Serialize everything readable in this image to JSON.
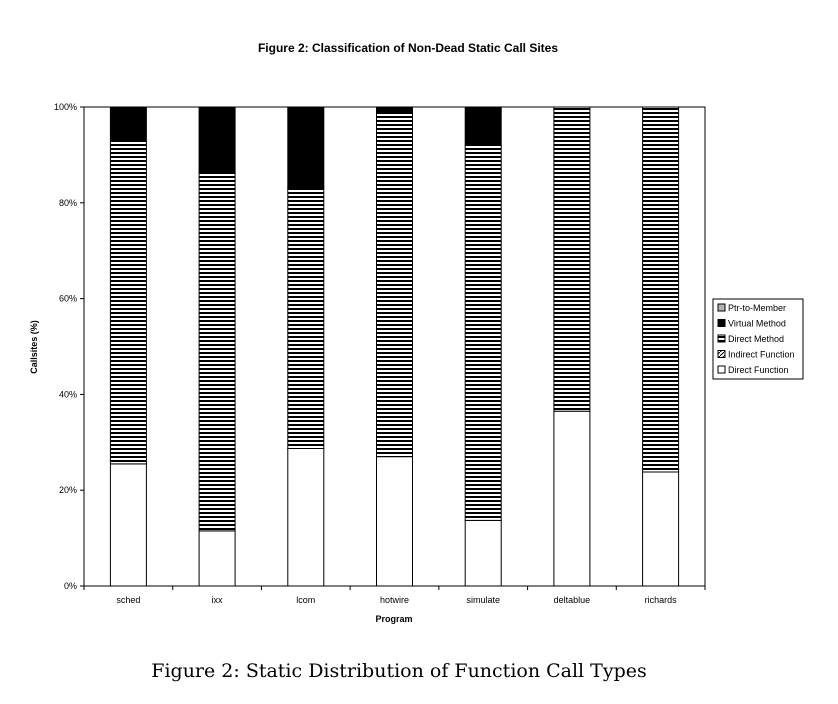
{
  "chart_data": {
    "type": "bar",
    "stacked": true,
    "title": "Figure 2: Classification of Non-Dead Static Call Sites",
    "xlabel": "Program",
    "ylabel": "Callsites (%)",
    "ylim": [
      0,
      100
    ],
    "yticks": [
      "0%",
      "20%",
      "40%",
      "60%",
      "80%",
      "100%"
    ],
    "categories": [
      "sched",
      "ixx",
      "lcom",
      "hotwire",
      "simulate",
      "deltablue",
      "richards"
    ],
    "series": [
      {
        "name": "Direct Function",
        "color": "#ffffff",
        "pattern": "none",
        "values": [
          25.5,
          11.5,
          28.7,
          27.0,
          13.7,
          36.5,
          23.8
        ]
      },
      {
        "name": "Indirect Function",
        "color": "#ffffff",
        "pattern": "diagonal",
        "values": [
          0,
          0,
          0,
          0,
          0,
          0,
          0
        ]
      },
      {
        "name": "Direct Method",
        "color": "#000000",
        "pattern": "horizontal",
        "values": [
          67.3,
          74.8,
          54.3,
          71.8,
          78.3,
          63.5,
          76.2
        ]
      },
      {
        "name": "Virtual Method",
        "color": "#000000",
        "pattern": "solid",
        "values": [
          7.2,
          13.7,
          17.0,
          1.2,
          8.0,
          0,
          0
        ]
      },
      {
        "name": "Ptr-to-Member",
        "color": "#b3b3b3",
        "pattern": "solid",
        "values": [
          0,
          0,
          0,
          0,
          0,
          0,
          0
        ]
      }
    ],
    "legend_position": "right",
    "grid": false
  },
  "caption": "Figure 2: Static Distribution of Function Call Types"
}
